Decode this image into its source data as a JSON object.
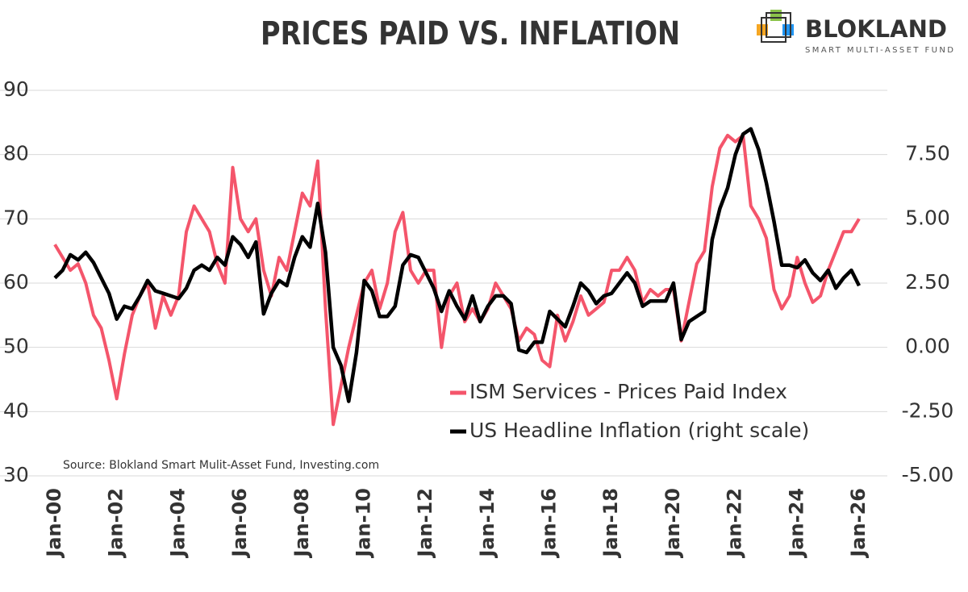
{
  "chart_data": {
    "type": "line",
    "title": "PRICES PAID VS. INFLATION",
    "brand": "BLOKLAND",
    "brand_tagline": "SMART MULTI-ASSET FUND",
    "source": "Source: Blokland Smart Mulit-Asset Fund, Investing.com",
    "x": [
      "2000-01",
      "2000-04",
      "2000-07",
      "2000-10",
      "2001-01",
      "2001-04",
      "2001-07",
      "2001-10",
      "2002-01",
      "2002-04",
      "2002-07",
      "2002-10",
      "2003-01",
      "2003-04",
      "2003-07",
      "2003-10",
      "2004-01",
      "2004-04",
      "2004-07",
      "2004-10",
      "2005-01",
      "2005-04",
      "2005-07",
      "2005-10",
      "2006-01",
      "2006-04",
      "2006-07",
      "2006-10",
      "2007-01",
      "2007-04",
      "2007-07",
      "2007-10",
      "2008-01",
      "2008-04",
      "2008-07",
      "2008-10",
      "2009-01",
      "2009-04",
      "2009-07",
      "2009-10",
      "2010-01",
      "2010-04",
      "2010-07",
      "2010-10",
      "2011-01",
      "2011-04",
      "2011-07",
      "2011-10",
      "2012-01",
      "2012-04",
      "2012-07",
      "2012-10",
      "2013-01",
      "2013-04",
      "2013-07",
      "2013-10",
      "2014-01",
      "2014-04",
      "2014-07",
      "2014-10",
      "2015-01",
      "2015-04",
      "2015-07",
      "2015-10",
      "2016-01",
      "2016-04",
      "2016-07",
      "2016-10",
      "2017-01",
      "2017-04",
      "2017-07",
      "2017-10",
      "2018-01",
      "2018-04",
      "2018-07",
      "2018-10",
      "2019-01",
      "2019-04",
      "2019-07",
      "2019-10",
      "2020-01",
      "2020-04",
      "2020-07",
      "2020-10",
      "2021-01",
      "2021-04",
      "2021-07",
      "2021-10",
      "2022-01",
      "2022-04",
      "2022-07",
      "2022-10",
      "2023-01",
      "2023-04",
      "2023-07",
      "2023-10",
      "2024-01",
      "2024-04",
      "2024-07",
      "2024-10",
      "2025-01",
      "2025-04",
      "2025-07",
      "2025-10",
      "2026-01"
    ],
    "series": [
      {
        "name": "ISM Services - Prices Paid Index",
        "color": "#f4556b",
        "axis": "y",
        "values": [
          66,
          64,
          62,
          63,
          60,
          55,
          53,
          48,
          42,
          49,
          55,
          58,
          60,
          53,
          58,
          55,
          58,
          68,
          72,
          70,
          68,
          63,
          60,
          78,
          70,
          68,
          70,
          62,
          58,
          64,
          62,
          68,
          74,
          72,
          79,
          56,
          38,
          44,
          50,
          55,
          60,
          62,
          56,
          60,
          68,
          71,
          62,
          60,
          62,
          62,
          50,
          58,
          60,
          54,
          56,
          54,
          56,
          60,
          58,
          56,
          51,
          53,
          52,
          48,
          47,
          55,
          51,
          54,
          58,
          55,
          56,
          57,
          62,
          62,
          64,
          62,
          57,
          59,
          58,
          59,
          59,
          51,
          57,
          63,
          65,
          75,
          81,
          83,
          82,
          83,
          72,
          70,
          67,
          59,
          56,
          58,
          64,
          60,
          57,
          58,
          62,
          65,
          68,
          68,
          70
        ]
      },
      {
        "name": "US Headline Inflation (right scale)",
        "color": "#000000",
        "axis": "y2",
        "values": [
          2.7,
          3.0,
          3.6,
          3.4,
          3.7,
          3.3,
          2.7,
          2.1,
          1.1,
          1.6,
          1.5,
          2.0,
          2.6,
          2.2,
          2.1,
          2.0,
          1.9,
          2.3,
          3.0,
          3.2,
          3.0,
          3.5,
          3.2,
          4.3,
          4.0,
          3.5,
          4.1,
          1.3,
          2.1,
          2.6,
          2.4,
          3.5,
          4.3,
          3.9,
          5.6,
          3.7,
          0.0,
          -0.7,
          -2.1,
          -0.2,
          2.6,
          2.2,
          1.2,
          1.2,
          1.6,
          3.2,
          3.6,
          3.5,
          2.9,
          2.3,
          1.4,
          2.2,
          1.6,
          1.1,
          2.0,
          1.0,
          1.6,
          2.0,
          2.0,
          1.7,
          -0.1,
          -0.2,
          0.2,
          0.2,
          1.4,
          1.1,
          0.8,
          1.6,
          2.5,
          2.2,
          1.7,
          2.0,
          2.1,
          2.5,
          2.9,
          2.5,
          1.6,
          1.8,
          1.8,
          1.8,
          2.5,
          0.3,
          1.0,
          1.2,
          1.4,
          4.2,
          5.4,
          6.2,
          7.5,
          8.3,
          8.5,
          7.7,
          6.4,
          4.9,
          3.2,
          3.2,
          3.1,
          3.4,
          2.9,
          2.6,
          3.0,
          2.3,
          2.7,
          3.0,
          2.4
        ]
      }
    ],
    "xlim": [
      "2000-01",
      "2026-01"
    ],
    "xticks": [
      {
        "value": "2000-01",
        "label": "Jan-00"
      },
      {
        "value": "2002-01",
        "label": "Jan-02"
      },
      {
        "value": "2004-01",
        "label": "Jan-04"
      },
      {
        "value": "2006-01",
        "label": "Jan-06"
      },
      {
        "value": "2008-01",
        "label": "Jan-08"
      },
      {
        "value": "2010-01",
        "label": "Jan-10"
      },
      {
        "value": "2012-01",
        "label": "Jan-12"
      },
      {
        "value": "2014-01",
        "label": "Jan-14"
      },
      {
        "value": "2016-01",
        "label": "Jan-16"
      },
      {
        "value": "2018-01",
        "label": "Jan-18"
      },
      {
        "value": "2020-01",
        "label": "Jan-20"
      },
      {
        "value": "2022-01",
        "label": "Jan-22"
      },
      {
        "value": "2024-01",
        "label": "Jan-24"
      },
      {
        "value": "2026-01",
        "label": "Jan-26"
      }
    ],
    "ylim": [
      30,
      90
    ],
    "yticks": [
      30,
      40,
      50,
      60,
      70,
      80,
      90
    ],
    "y2lim": [
      -5,
      10
    ],
    "y2ticks": [
      {
        "value": -5,
        "label": "-5.00"
      },
      {
        "value": -2.5,
        "label": "-2.50"
      },
      {
        "value": 0,
        "label": "0.00"
      },
      {
        "value": 2.5,
        "label": "2.50"
      },
      {
        "value": 5,
        "label": "5.00"
      },
      {
        "value": 7.5,
        "label": "7.50"
      }
    ],
    "grid": true
  }
}
